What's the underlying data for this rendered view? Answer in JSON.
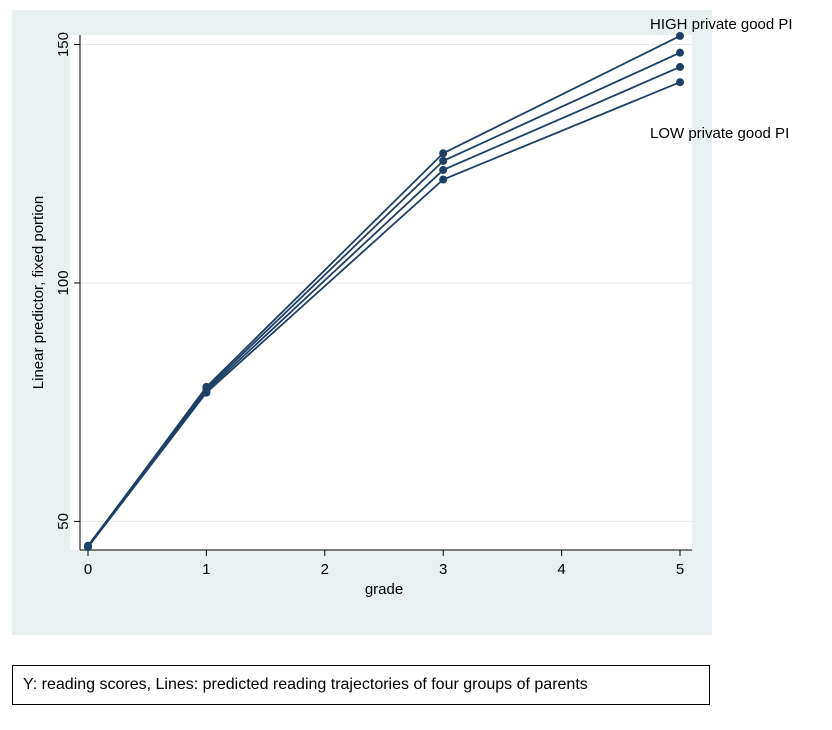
{
  "chart_data": {
    "type": "line",
    "xlabel": "grade",
    "ylabel": "Linear predictor, fixed portion",
    "x": [
      0,
      1,
      3,
      5
    ],
    "xticks": [
      0,
      1,
      2,
      3,
      4,
      5
    ],
    "xlim": [
      0,
      5
    ],
    "yticks": [
      50,
      100,
      150
    ],
    "ylim": [
      44,
      152
    ],
    "grid": "horizontal",
    "series": [
      {
        "values": [
          44.8,
          78.2,
          127.2,
          151.8
        ]
      },
      {
        "values": [
          44.9,
          77.8,
          125.6,
          148.3
        ]
      },
      {
        "values": [
          44.7,
          77.4,
          123.7,
          145.3
        ]
      },
      {
        "values": [
          44.6,
          77.0,
          121.7,
          142.1
        ]
      }
    ],
    "annotations": [
      {
        "text": "HIGH private good PI"
      },
      {
        "text": "LOW private good PI"
      }
    ],
    "line_color": "#1f3f66",
    "background_color": "#e9f0f2",
    "plot_background": "#ffffff"
  },
  "caption": "Y: reading scores,  Lines: predicted reading trajectories of four groups of parents"
}
